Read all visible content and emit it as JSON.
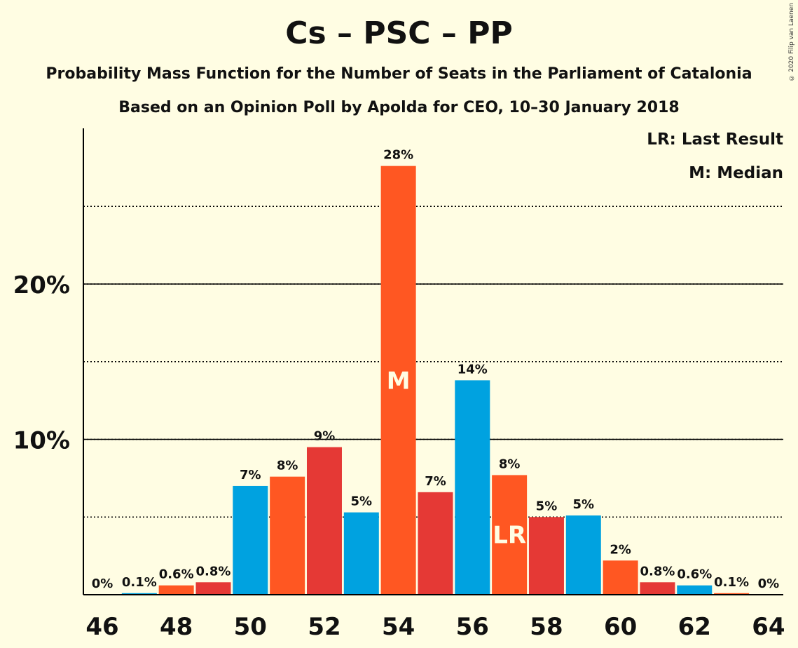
{
  "chart_data": {
    "type": "bar",
    "title": "Cs – PSC – PP",
    "subtitles": [
      "Probability Mass Function for the Number of Seats in the Parliament of Catalonia",
      "Based on an Opinion Poll by Apolda for CEO, 10–30 January 2018"
    ],
    "copyright": "© 2020 Filip van Laenen",
    "legend": {
      "last_result": "LR: Last Result",
      "median": "M: Median"
    },
    "xlabel": "",
    "ylabel": "",
    "ylim": [
      0,
      0.3
    ],
    "y_major_ticks": [
      {
        "value": 0.1,
        "label": "10%"
      },
      {
        "value": 0.2,
        "label": "20%"
      }
    ],
    "y_minor_gridlines": [
      0.05,
      0.15,
      0.25
    ],
    "x_ticks": [
      46,
      48,
      50,
      52,
      54,
      56,
      58,
      60,
      62,
      64
    ],
    "categories": [
      46,
      47,
      48,
      49,
      50,
      51,
      52,
      53,
      54,
      55,
      56,
      57,
      58,
      59,
      60,
      61,
      62,
      63,
      64
    ],
    "values": [
      0.0,
      0.001,
      0.006,
      0.008,
      0.07,
      0.076,
      0.095,
      0.053,
      0.276,
      0.066,
      0.138,
      0.077,
      0.05,
      0.051,
      0.022,
      0.008,
      0.006,
      0.001,
      0.0
    ],
    "labels": [
      "0%",
      "0.1%",
      "0.6%",
      "0.8%",
      "7%",
      "8%",
      "9%",
      "5%",
      "28%",
      "7%",
      "14%",
      "8%",
      "5%",
      "5%",
      "2%",
      "0.8%",
      "0.6%",
      "0.1%",
      "0%"
    ],
    "colors": [
      "#E53935",
      "#00A2E0",
      "#FF5722",
      "#E53935",
      "#00A2E0",
      "#FF5722",
      "#E53935",
      "#00A2E0",
      "#FF5722",
      "#E53935",
      "#00A2E0",
      "#FF5722",
      "#E53935",
      "#00A2E0",
      "#FF5722",
      "#E53935",
      "#00A2E0",
      "#FF5722",
      "#E53935"
    ],
    "median_seat": 54,
    "median_marker": "M",
    "last_result_seat": 57,
    "last_result_marker": "LR"
  }
}
